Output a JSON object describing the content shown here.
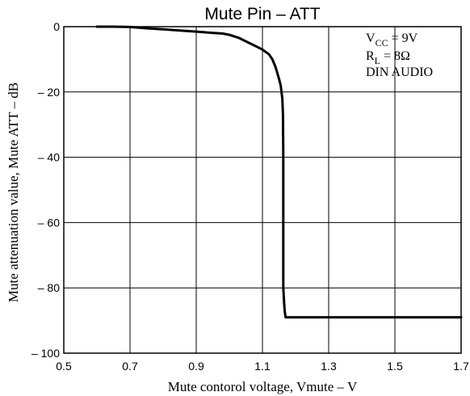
{
  "chart_data": {
    "type": "line",
    "title": "Mute Pin  –  ATT",
    "xlabel": "Mute contorol voltage, Vmute  –  V",
    "ylabel": "Mute attenuation value, Mute ATT  –  dB",
    "xlim": [
      0.5,
      1.7
    ],
    "ylim": [
      -100,
      0
    ],
    "x_ticks": [
      0.5,
      0.7,
      0.9,
      1.1,
      1.3,
      1.5,
      1.7
    ],
    "x_tick_labels": [
      "0.5",
      "0.7",
      "0.9",
      "1.1",
      "1.3",
      "1.5",
      "1.7"
    ],
    "y_ticks": [
      0,
      -20,
      -40,
      -60,
      -80,
      -100
    ],
    "y_tick_labels": [
      "0",
      "– 20",
      "– 40",
      "– 60",
      "– 80",
      "– 100"
    ],
    "grid": true,
    "annotation": {
      "line1": {
        "main": "V",
        "sub": "CC",
        "rest": " = 9V"
      },
      "line2": {
        "main": "R",
        "sub": "L",
        "rest": " = 8Ω"
      },
      "line3": "DIN AUDIO"
    },
    "series": [
      {
        "x": [
          0.6,
          0.65,
          0.7,
          0.75,
          0.8,
          0.85,
          0.9,
          0.95,
          0.98,
          1.0,
          1.03,
          1.06,
          1.08,
          1.1,
          1.12,
          1.13,
          1.14,
          1.15,
          1.155,
          1.16,
          1.162,
          1.163,
          1.163,
          1.163,
          1.163,
          1.165,
          1.167,
          1.17,
          1.175,
          1.19,
          1.3,
          1.4,
          1.5,
          1.6,
          1.7
        ],
        "y": [
          0,
          0,
          -0.1,
          -0.5,
          -0.8,
          -1.2,
          -1.5,
          -1.9,
          -2.1,
          -2.5,
          -3.5,
          -5.0,
          -6.0,
          -7.0,
          -8.5,
          -10,
          -12.5,
          -16,
          -18,
          -22,
          -27,
          -40,
          -55,
          -65,
          -80,
          -84,
          -87,
          -89,
          -89,
          -89,
          -89,
          -89,
          -89,
          -89,
          -89
        ]
      }
    ]
  }
}
